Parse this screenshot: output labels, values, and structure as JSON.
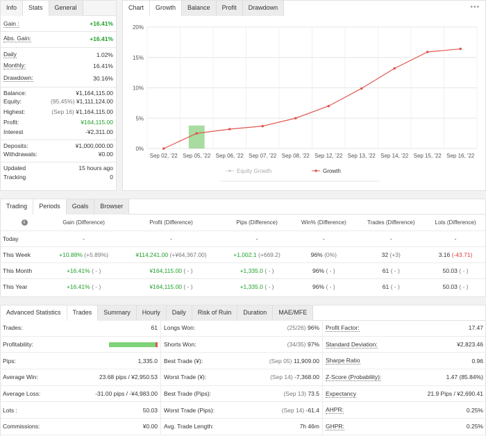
{
  "info": {
    "tabs": [
      "Info",
      "Stats",
      "General"
    ],
    "active_tab": 1,
    "gain": {
      "label": "Gain :",
      "value": "+16.41%"
    },
    "abs_gain": {
      "label": "Abs. Gain:",
      "value": "+16.41%"
    },
    "daily": {
      "label": "Daily",
      "value": "1.02%"
    },
    "monthly": {
      "label": "Monthly:",
      "value": "16.41%"
    },
    "drawdown": {
      "label": "Drawdown:",
      "value": "30.16%"
    },
    "balance": {
      "label": "Balance:",
      "value": "¥1,164,115.00"
    },
    "equity": {
      "label": "Equity:",
      "note": "(95.45%)",
      "value": "¥1,111,124.00"
    },
    "highest": {
      "label": "Highest:",
      "note": "(Sep 16)",
      "value": "¥1,164,115.00"
    },
    "profit": {
      "label": "Profit:",
      "value": "¥164,115.00"
    },
    "interest": {
      "label": "Interest",
      "value": "-¥2,311.00"
    },
    "deposits": {
      "label": "Deposits:",
      "value": "¥1,000,000.00"
    },
    "withdrawals": {
      "label": "Withdrawals:",
      "value": "¥0.00"
    },
    "updated": {
      "label": "Updated",
      "value": "15 hours ago"
    },
    "tracking": {
      "label": "Tracking",
      "value": "0"
    }
  },
  "chart_panel": {
    "tabs": [
      "Chart",
      "Growth",
      "Balance",
      "Profit",
      "Drawdown"
    ],
    "active_tab": 1,
    "menu_glyph": "•••"
  },
  "chart_data": {
    "type": "line",
    "title": "",
    "categories": [
      "Sep 02, '22",
      "Sep 05, '22",
      "Sep 06, '22",
      "Sep 07, '22",
      "Sep 08, '22",
      "Sep 12, '22",
      "Sep 13, '22",
      "Sep 14, '22",
      "Sep 15, '22",
      "Sep 16, '22"
    ],
    "y_ticks": [
      "0%",
      "5%",
      "10%",
      "15%",
      "20%"
    ],
    "ylim": [
      0,
      20
    ],
    "grid": true,
    "series": [
      {
        "name": "Equity Growth",
        "type": "bar",
        "color": "#a8dca0",
        "values": [
          0,
          3.8,
          0,
          0,
          0,
          0,
          0,
          0,
          0,
          0
        ]
      },
      {
        "name": "Growth",
        "type": "line",
        "color": "#e0574f",
        "values": [
          0,
          2.5,
          3.2,
          3.7,
          5.0,
          7.0,
          9.9,
          13.2,
          15.9,
          16.41
        ]
      }
    ],
    "legend": "bottom"
  },
  "trading": {
    "tabs": [
      "Trading",
      "Periods",
      "Goals",
      "Browser"
    ],
    "active_tab": 1,
    "info_icon": "info-icon",
    "headers": [
      "Gain (Difference)",
      "Profit (Difference)",
      "Pips (Difference)",
      "Win% (Difference)",
      "Trades (Difference)",
      "Lots (Difference)"
    ],
    "rows": [
      {
        "period": "Today",
        "gain": "-",
        "gain_d": "",
        "profit": "-",
        "profit_d": "",
        "pips": "-",
        "pips_d": "",
        "win": "-",
        "win_d": "",
        "trades": "-",
        "trades_d": "",
        "lots": "-",
        "lots_d": ""
      },
      {
        "period": "This Week",
        "gain": "+10.88%",
        "gain_d": "(+5.89%)",
        "profit": "¥114,241.00",
        "profit_d": "(+¥64,367.00)",
        "pips": "+1,002.1",
        "pips_d": "(+669.2)",
        "win": "96%",
        "win_d": "(0%)",
        "trades": "32",
        "trades_d": "(+3)",
        "lots": "3.16",
        "lots_d": "(-43.71)"
      },
      {
        "period": "This Month",
        "gain": "+16.41%",
        "gain_d": "( - )",
        "profit": "¥164,115.00",
        "profit_d": "( - )",
        "pips": "+1,335.0",
        "pips_d": "( - )",
        "win": "96%",
        "win_d": "( - )",
        "trades": "61",
        "trades_d": "( - )",
        "lots": "50.03",
        "lots_d": "( - )"
      },
      {
        "period": "This Year",
        "gain": "+16.41%",
        "gain_d": "( - )",
        "profit": "¥164,115.00",
        "profit_d": "( - )",
        "pips": "+1,335.0",
        "pips_d": "( - )",
        "win": "96%",
        "win_d": "( - )",
        "trades": "61",
        "trades_d": "( - )",
        "lots": "50.03",
        "lots_d": "( - )"
      }
    ]
  },
  "advanced": {
    "tabs": [
      "Advanced Statistics",
      "Trades",
      "Summary",
      "Hourly",
      "Daily",
      "Risk of Ruin",
      "Duration",
      "MAE/MFE"
    ],
    "active_tab": 1,
    "profitability_fraction": 0.96,
    "rows": [
      {
        "l1": "Trades:",
        "v1": "61",
        "l2": "Longs Won:",
        "n2": "(25/26)",
        "v2": "96%",
        "l3": "Profit Factor:",
        "v3": "17.47"
      },
      {
        "l1": "Profitability:",
        "v1": "",
        "l2": "Shorts Won:",
        "n2": "(34/35)",
        "v2": "97%",
        "l3": "Standard Deviation:",
        "v3": "¥2,823.46"
      },
      {
        "l1": "Pips:",
        "v1": "1,335.0",
        "l2": "Best Trade (¥):",
        "n2": "(Sep 05)",
        "v2": "11,909.00",
        "l3": "Sharpe Ratio",
        "v3": "0.96"
      },
      {
        "l1": "Average Win:",
        "v1": "23.68 pips / ¥2,950.53",
        "l2": "Worst Trade (¥):",
        "n2": "(Sep 14)",
        "v2": "-7,368.00",
        "l3": "Z-Score (Probability):",
        "v3": "1.47 (85.84%)"
      },
      {
        "l1": "Average Loss:",
        "v1": "-31.00 pips / -¥4,983.00",
        "l2": "Best Trade (Pips):",
        "n2": "(Sep 13)",
        "v2": "73.5",
        "l3": "Expectancy",
        "v3": "21.9 Pips / ¥2,690.41"
      },
      {
        "l1": "Lots :",
        "v1": "50.03",
        "l2": "Worst Trade (Pips):",
        "n2": "(Sep 14)",
        "v2": "-61.4",
        "l3": "AHPR:",
        "v3": "0.25%"
      },
      {
        "l1": "Commissions:",
        "v1": "¥0.00",
        "l2": "Avg. Trade Length:",
        "n2": "",
        "v2": "7h 46m",
        "l3": "GHPR:",
        "v3": "0.25%"
      }
    ]
  }
}
